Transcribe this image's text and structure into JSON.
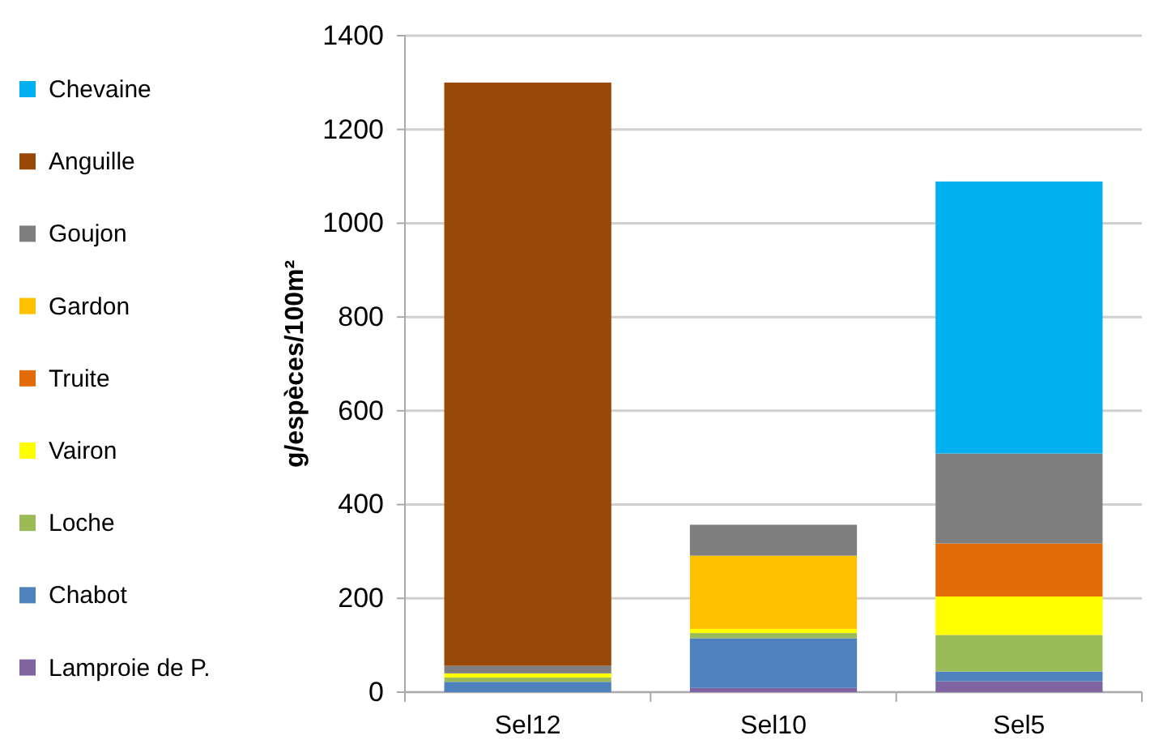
{
  "chart_data": {
    "type": "bar",
    "stacked": true,
    "ylabel": "g/espèces/100m²",
    "categories": [
      "Sel12",
      "Sel10",
      "Sel5"
    ],
    "series": [
      {
        "name": "Lamproie de P.",
        "color": "#8064a2",
        "values": [
          0,
          9,
          23
        ]
      },
      {
        "name": "Chabot",
        "color": "#4f81bd",
        "values": [
          22,
          106,
          21
        ]
      },
      {
        "name": "Loche",
        "color": "#9bbb59",
        "values": [
          9,
          11,
          78
        ]
      },
      {
        "name": "Vairon",
        "color": "#ffff00",
        "values": [
          9,
          9,
          82
        ]
      },
      {
        "name": "Truite",
        "color": "#e36c09",
        "values": [
          0,
          0,
          113
        ]
      },
      {
        "name": "Gardon",
        "color": "#ffc000",
        "values": [
          0,
          156,
          0
        ]
      },
      {
        "name": "Goujon",
        "color": "#7f7f7f",
        "values": [
          16,
          66,
          192
        ]
      },
      {
        "name": "Anguille",
        "color": "#984807",
        "values": [
          1244,
          0,
          0
        ]
      },
      {
        "name": "Chevaine",
        "color": "#00b0f0",
        "values": [
          0,
          0,
          580
        ]
      }
    ],
    "ylim": [
      0,
      1400
    ],
    "yticks": [
      0,
      200,
      400,
      600,
      800,
      1000,
      1200,
      1400
    ],
    "grid": "y",
    "legend": "left"
  }
}
